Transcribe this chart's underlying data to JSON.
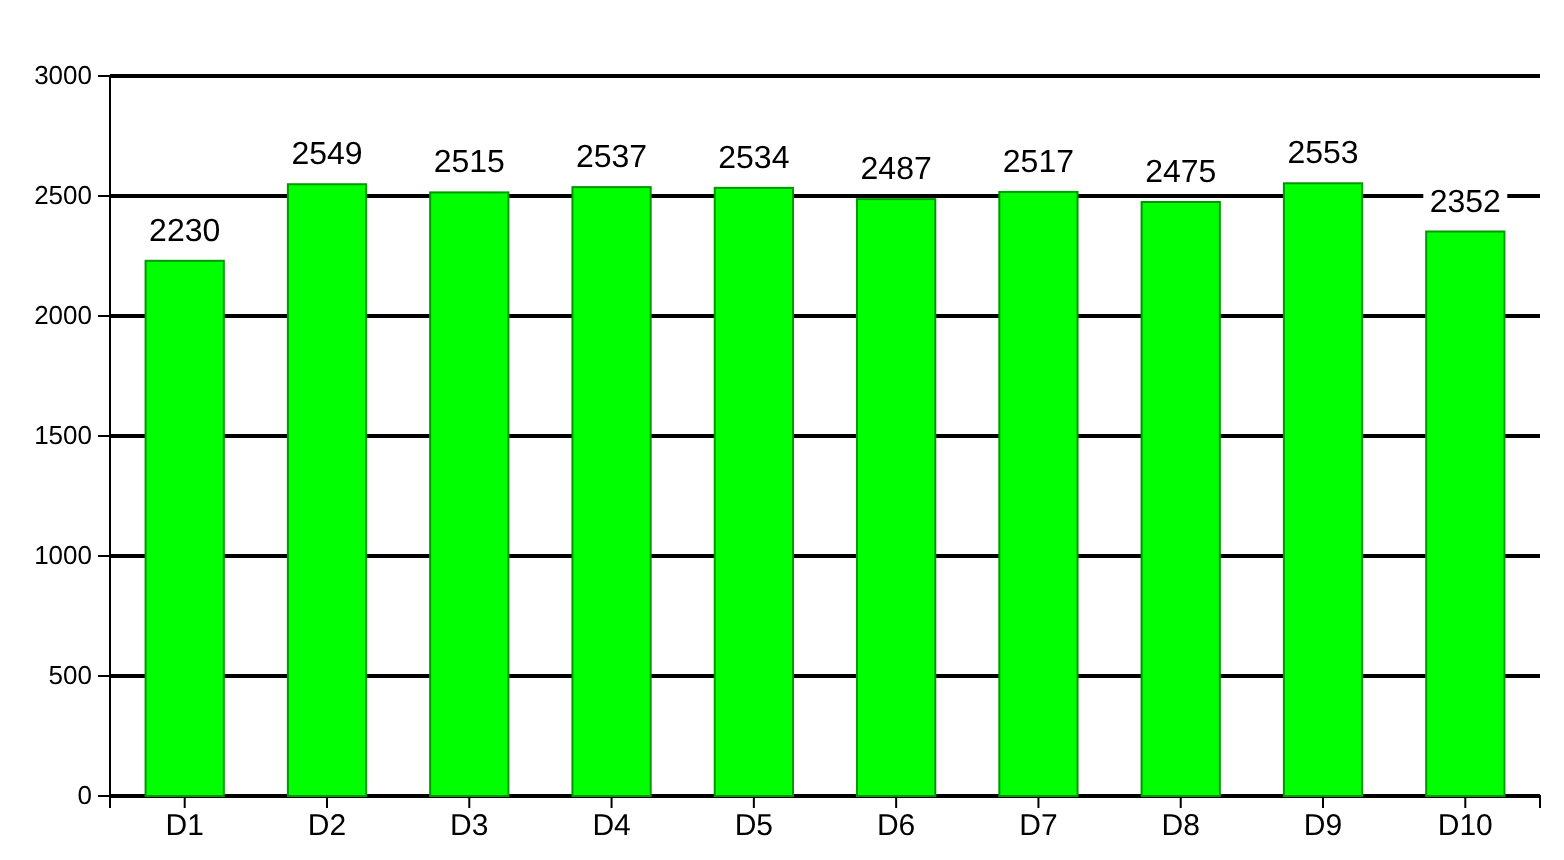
{
  "chart_data": {
    "type": "bar",
    "categories": [
      "D1",
      "D2",
      "D3",
      "D4",
      "D5",
      "D6",
      "D7",
      "D8",
      "D9",
      "D10"
    ],
    "values": [
      2230,
      2549,
      2515,
      2537,
      2534,
      2487,
      2517,
      2475,
      2553,
      2352
    ],
    "color": "#00ff00",
    "ylim": [
      0,
      3000
    ],
    "yticks": [
      0,
      500,
      1000,
      1500,
      2000,
      2500,
      3000
    ],
    "grid": "y",
    "data_labels": true
  }
}
